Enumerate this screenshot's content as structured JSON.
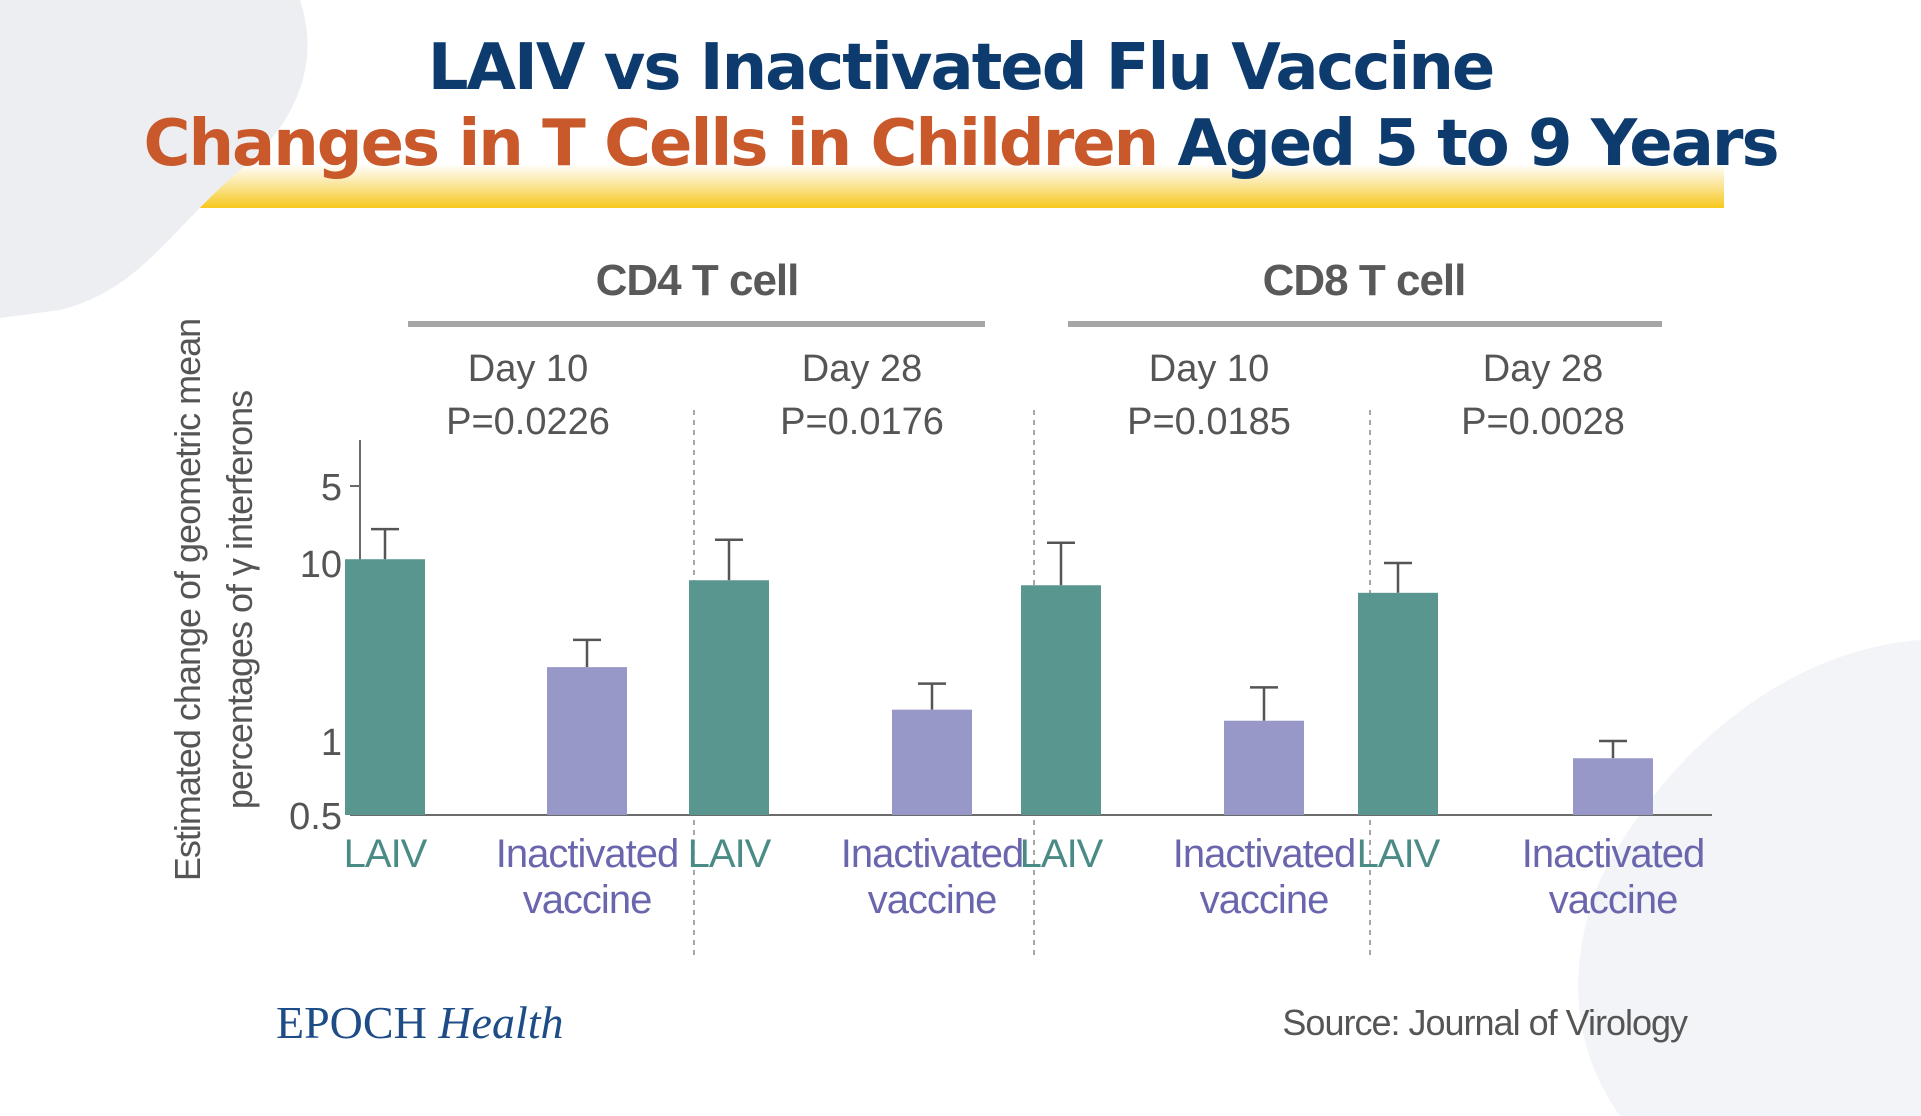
{
  "title": {
    "line1": "LAIV vs Inactivated Flu Vaccine",
    "line2_highlight": "Changes in T Cells in Children",
    "line2_rest": " Aged 5 to 9 Years"
  },
  "colors": {
    "title_blue": "#0d3b6e",
    "title_orange": "#c9582a",
    "laiv": "#5a9690",
    "inactivated": "#9797c8",
    "laiv_label": "#4b8b86",
    "inactivated_label": "#6a66ad",
    "underline": "#f7c81c"
  },
  "chart_data": {
    "type": "bar",
    "scale": "log",
    "ylabel_line1": "Estimated change of geometric mean",
    "ylabel_line2": "percentages of γ interferons",
    "y_ticks": [
      0.5,
      1,
      5,
      10
    ],
    "y_tick_labels": [
      "0.5",
      "1",
      "5",
      "10"
    ],
    "y_tick_order_note": "ticks as printed on axis (5 appears above 10)",
    "groups": [
      {
        "name": "CD4 T cell",
        "panels": [
          {
            "day": "Day 10",
            "p": "P=0.0226",
            "bars": [
              {
                "category": "LAIV",
                "value": 10.5,
                "error_upper": 15.5
              },
              {
                "category": "Inactivated vaccine",
                "value": 2.6,
                "error_upper": 3.7
              }
            ]
          },
          {
            "day": "Day 28",
            "p": "P=0.0176",
            "bars": [
              {
                "category": "LAIV",
                "value": 8.0,
                "error_upper": 13.5
              },
              {
                "category": "Inactivated vaccine",
                "value": 1.5,
                "error_upper": 2.1
              }
            ]
          }
        ]
      },
      {
        "name": "CD8 T cell",
        "panels": [
          {
            "day": "Day 10",
            "p": "P=0.0185",
            "bars": [
              {
                "category": "LAIV",
                "value": 7.5,
                "error_upper": 13.0
              },
              {
                "category": "Inactivated vaccine",
                "value": 1.3,
                "error_upper": 2.0
              }
            ]
          },
          {
            "day": "Day 28",
            "p": "P=0.0028",
            "bars": [
              {
                "category": "LAIV",
                "value": 6.8,
                "error_upper": 10.0
              },
              {
                "category": "Inactivated vaccine",
                "value": 0.8,
                "error_upper": 1.0
              }
            ]
          }
        ]
      }
    ],
    "category_labels": {
      "laiv": "LAIV",
      "inactivated_line1": "Inactivated",
      "inactivated_line2": "vaccine"
    }
  },
  "footer": {
    "logo_main": "EPOCH",
    "logo_italic": "Health",
    "source": "Source: Journal of Virology"
  }
}
